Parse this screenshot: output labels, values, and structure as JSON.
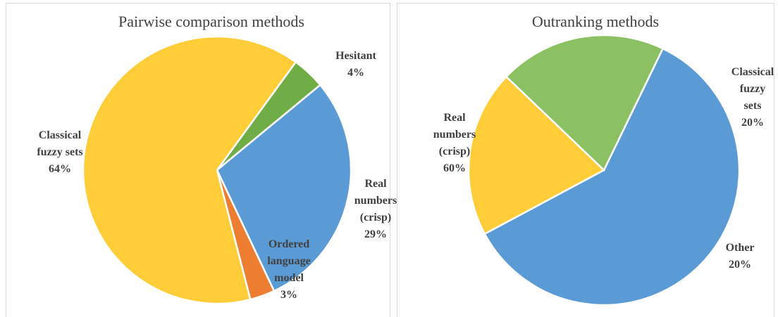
{
  "chart_data": [
    {
      "type": "pie",
      "title": "Pairwise comparison methods",
      "categories": [
        "Hesitant",
        "Real numbers (crisp)",
        "Ordered language model",
        "Classical fuzzy sets"
      ],
      "values": [
        4,
        29,
        3,
        64
      ],
      "value_labels": [
        "4%",
        "29%",
        "3%",
        "64%"
      ],
      "colors": [
        "#70ad47",
        "#5b9bd5",
        "#ed7d31",
        "#ffcd38"
      ]
    },
    {
      "type": "pie",
      "title": "Outranking methods",
      "categories": [
        "Real numbers (crisp)",
        "Classical fuzzy sets",
        "Other"
      ],
      "values": [
        60,
        20,
        20
      ],
      "value_labels": [
        "60%",
        "20%",
        "20%"
      ],
      "colors": [
        "#5b9bd5",
        "#ffcd38",
        "#8bc162"
      ]
    }
  ]
}
